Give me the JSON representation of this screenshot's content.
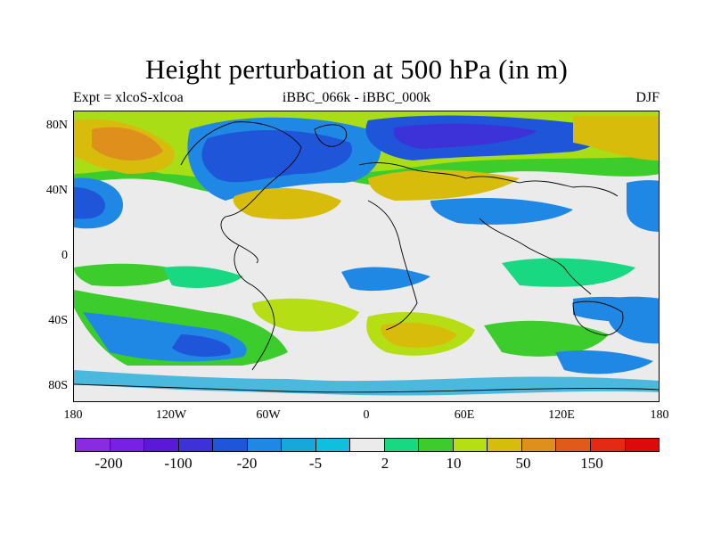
{
  "title": "Height perturbation at 500 hPa (in m)",
  "subtitle_left": "Expt = xlcoS-xlcoa",
  "subtitle_center": "iBBC_066k - iBBC_000k",
  "subtitle_right": "DJF",
  "y_ticks": [
    "80N",
    "40N",
    "0",
    "40S",
    "80S"
  ],
  "x_ticks": [
    "180",
    "120W",
    "60W",
    "0",
    "60E",
    "120E",
    "180"
  ],
  "colorbar": {
    "colors": [
      "#8a2be2",
      "#7a1fe6",
      "#5a19d6",
      "#3d32d8",
      "#1f55d8",
      "#1f88e5",
      "#16a8da",
      "#10bfdd",
      "#ebebeb",
      "#18d982",
      "#3ccc2c",
      "#b5df14",
      "#d8bc0c",
      "#de8f1c",
      "#e15a1a",
      "#e52a14",
      "#dc0a0a"
    ],
    "labels": [
      "-200",
      "-100",
      "-20",
      "-5",
      "2",
      "10",
      "50",
      "150"
    ]
  }
}
